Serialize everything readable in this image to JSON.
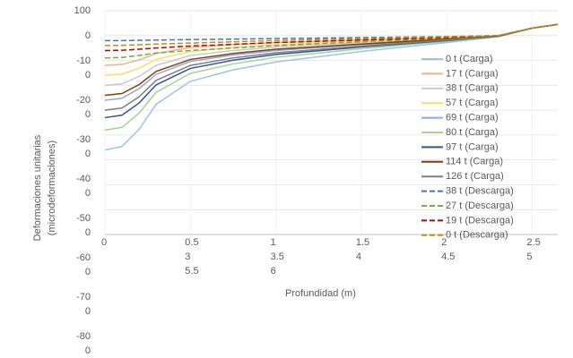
{
  "chart_data": {
    "type": "line",
    "x_label": "Profundidad (m)",
    "y_label": "Deformaciones unitarias (microdeformaciones)",
    "x": [
      0,
      0.1,
      0.2,
      0.3,
      0.5,
      0.75,
      1,
      1.5,
      2,
      2.3,
      2.5,
      2.65
    ],
    "xlim": [
      0,
      2.65
    ],
    "xticks": [
      0,
      0.5,
      1,
      1.5,
      2,
      2.5,
      3,
      3.5,
      4,
      4.5,
      5,
      5.5,
      6
    ],
    "ylim": [
      -800,
      100
    ],
    "yticks": [
      100,
      0,
      -100,
      -200,
      -300,
      -400,
      -500,
      -600,
      -700,
      -800
    ],
    "grid": true,
    "legend": "right",
    "series": [
      {
        "name": "0 t (Carga)",
        "color": "#9dc3e6",
        "style": "solid",
        "values": [
          -460,
          -446,
          -377,
          -276,
          -184,
          -138,
          -106,
          -64,
          -28,
          -5,
          30,
          45
        ]
      },
      {
        "name": "17 t (Carga)",
        "color": "#f4b183",
        "style": "solid",
        "values": [
          -120,
          -116,
          -98,
          -72,
          -48,
          -36,
          -28,
          -17,
          -7,
          -1,
          30,
          45
        ]
      },
      {
        "name": "38 t (Carga)",
        "color": "#c9c9c9",
        "style": "solid",
        "values": [
          -200,
          -194,
          -164,
          -120,
          -80,
          -60,
          -46,
          -28,
          -12,
          -2,
          30,
          45
        ]
      },
      {
        "name": "57 t (Carga)",
        "color": "#ffd966",
        "style": "solid",
        "values": [
          -160,
          -155,
          -131,
          -96,
          -64,
          -48,
          -37,
          -22,
          -10,
          -2,
          30,
          45
        ]
      },
      {
        "name": "69 t (Carga)",
        "color": "#8faadc",
        "style": "solid",
        "values": [
          -260,
          -252,
          -213,
          -156,
          -104,
          -78,
          -60,
          -36,
          -16,
          -3,
          30,
          45
        ]
      },
      {
        "name": "80 t (Carga)",
        "color": "#a9d18e",
        "style": "solid",
        "values": [
          -380,
          -369,
          -312,
          -228,
          -152,
          -114,
          -87,
          -53,
          -23,
          -4,
          30,
          45
        ]
      },
      {
        "name": "97 t (Carga)",
        "color": "#2f5597",
        "style": "solid",
        "values": [
          -330,
          -320,
          -271,
          -198,
          -132,
          -99,
          -76,
          -46,
          -20,
          -3,
          30,
          45
        ]
      },
      {
        "name": "114 t (Carga)",
        "color": "#843c0c",
        "style": "solid",
        "values": [
          -240,
          -233,
          -197,
          -144,
          -96,
          -72,
          -55,
          -34,
          -14,
          -2,
          30,
          45
        ]
      },
      {
        "name": "126 t (Carga)",
        "color": "#7f7f7f",
        "style": "solid",
        "values": [
          -300,
          -291,
          -246,
          -180,
          -120,
          -90,
          -69,
          -42,
          -18,
          -3,
          30,
          45
        ]
      },
      {
        "name": "38 t (Descarga)",
        "color": "#4472c4",
        "style": "dashed",
        "values": [
          -20,
          -20,
          -19,
          -18,
          -16,
          -14,
          -12,
          -8,
          -4,
          0,
          30,
          45
        ]
      },
      {
        "name": "27 t (Descarga)",
        "color": "#70ad47",
        "style": "dashed",
        "values": [
          -90,
          -88,
          -80,
          -70,
          -60,
          -50,
          -40,
          -25,
          -10,
          -1,
          30,
          45
        ]
      },
      {
        "name": "19 t (Descarga)",
        "color": "#c00000",
        "style": "dashed",
        "values": [
          -60,
          -59,
          -55,
          -50,
          -42,
          -35,
          -28,
          -18,
          -8,
          -1,
          30,
          45
        ]
      },
      {
        "name": "0 t (Descarga)",
        "color": "#bf9000",
        "style": "dashed",
        "values": [
          -40,
          -39,
          -37,
          -34,
          -30,
          -25,
          -20,
          -12,
          -5,
          0,
          30,
          45
        ]
      }
    ]
  }
}
